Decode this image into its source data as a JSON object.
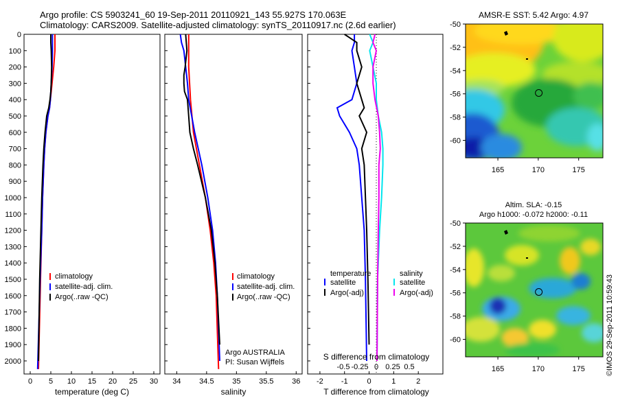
{
  "titles": {
    "line1": "Argo profile: CS 5903241_60 19-Sep-2011 20110921_143 55.927S 170.063E",
    "line2": "Climatology: CARS2009. Satellite-adjusted climatology: synTS_20110917.nc (2.6d earlier)"
  },
  "colors": {
    "climatology": "#ff0000",
    "satellite": "#0000ff",
    "argo": "#000000",
    "s_satellite": "#00e5ee",
    "s_argo": "#ee00ee"
  },
  "chart_data": [
    {
      "type": "line",
      "id": "temperature",
      "xlabel": "temperature (deg C)",
      "ylabel": "",
      "xlim": [
        -1.5,
        31.5
      ],
      "ylim": [
        0,
        2080
      ],
      "y_inverted": true,
      "xticks": [
        "0",
        "5",
        "10",
        "15",
        "20",
        "25",
        "30"
      ],
      "yticks": [
        "0",
        "100",
        "200",
        "300",
        "400",
        "500",
        "600",
        "700",
        "800",
        "900",
        "1000",
        "1100",
        "1200",
        "1300",
        "1400",
        "1500",
        "1600",
        "1700",
        "1800",
        "1900",
        "2000"
      ],
      "legend": [
        "climatology",
        "satellite-adj. clim.",
        "Argo(..raw -QC)"
      ],
      "series": [
        {
          "name": "climatology",
          "color": "#ff0000",
          "depth": [
            0,
            100,
            200,
            300,
            400,
            450,
            500,
            600,
            700,
            800,
            1000,
            1200,
            1500,
            2050
          ],
          "values": [
            6.0,
            6.0,
            5.7,
            5.3,
            4.9,
            4.7,
            4.3,
            3.8,
            3.5,
            3.3,
            3.0,
            2.8,
            2.5,
            2.0
          ]
        },
        {
          "name": "satellite-adj. clim.",
          "color": "#0000ff",
          "depth": [
            0,
            100,
            200,
            300,
            400,
            450,
            500,
            600,
            700,
            800,
            1000,
            1200,
            1500,
            2050
          ],
          "values": [
            5.4,
            5.4,
            5.3,
            5.1,
            4.9,
            4.7,
            4.3,
            3.8,
            3.5,
            3.3,
            3.0,
            2.8,
            2.4,
            1.8
          ]
        },
        {
          "name": "Argo(..raw -QC)",
          "color": "#000000",
          "depth": [
            0,
            50,
            100,
            200,
            300,
            350,
            400,
            450,
            500,
            600,
            700,
            800,
            1000,
            1200,
            1500,
            2000
          ],
          "values": [
            5.0,
            5.0,
            5.1,
            5.2,
            5.1,
            5.0,
            4.8,
            4.5,
            4.0,
            3.6,
            3.3,
            3.1,
            2.8,
            2.6,
            2.3,
            2.0
          ]
        }
      ]
    },
    {
      "type": "line",
      "id": "salinity",
      "xlabel": "salinity",
      "ylabel": "",
      "xlim": [
        33.8,
        36.1
      ],
      "ylim": [
        0,
        2080
      ],
      "y_inverted": true,
      "xticks": [
        "34",
        "34.5",
        "35",
        "35.5",
        "36"
      ],
      "legend": [
        "climatology",
        "satellite-adj. clim.",
        "Argo(..raw -QC)"
      ],
      "annotation": [
        "Argo AUSTRALIA",
        "PI: Susan Wijffels"
      ],
      "series": [
        {
          "name": "climatology",
          "color": "#ff0000",
          "depth": [
            0,
            100,
            200,
            400,
            600,
            800,
            1000,
            1200,
            1400,
            1600,
            2050
          ],
          "values": [
            34.2,
            34.2,
            34.2,
            34.23,
            34.28,
            34.38,
            34.48,
            34.56,
            34.62,
            34.66,
            34.7
          ]
        },
        {
          "name": "satellite-adj. clim.",
          "color": "#0000ff",
          "depth": [
            0,
            50,
            100,
            200,
            300,
            400,
            600,
            800,
            1000,
            1200,
            1400,
            1600,
            2000
          ],
          "values": [
            34.06,
            34.08,
            34.12,
            34.15,
            34.18,
            34.2,
            34.3,
            34.42,
            34.52,
            34.6,
            34.65,
            34.68,
            34.72
          ]
        },
        {
          "name": "Argo(..raw -QC)",
          "color": "#000000",
          "depth": [
            0,
            50,
            100,
            200,
            250,
            300,
            350,
            400,
            500,
            600,
            700,
            800,
            1000,
            1200,
            1400,
            1600,
            1900
          ],
          "values": [
            34.15,
            34.16,
            34.17,
            34.14,
            34.12,
            34.12,
            34.13,
            34.18,
            34.2,
            34.22,
            34.28,
            34.35,
            34.48,
            34.58,
            34.64,
            34.68,
            34.72
          ]
        }
      ]
    },
    {
      "type": "line",
      "id": "differences",
      "xlabel": "T difference from climatology",
      "xlabel_top": "S difference from climatology",
      "xlim": [
        -2.5,
        3.0
      ],
      "s_xlim": [
        -0.75,
        0.75
      ],
      "ylim": [
        0,
        2080
      ],
      "y_inverted": true,
      "xticks": [
        "-2",
        "-1",
        "0",
        "1",
        "2"
      ],
      "s_xticks": [
        "-0.5",
        "-0.25",
        "0",
        "0.25",
        "0.5"
      ],
      "legend_t": {
        "title": "temperature",
        "entries": [
          "satellite",
          "Argo(-adj)"
        ]
      },
      "legend_s": {
        "title": "salinity",
        "entries": [
          "satellite",
          "Argo(-adj)"
        ]
      },
      "series": [
        {
          "name": "temperature satellite",
          "color": "#0000ff",
          "depth": [
            0,
            50,
            100,
            200,
            300,
            400,
            450,
            500,
            600,
            700,
            800,
            1000,
            1200,
            1500,
            2000
          ],
          "values": [
            -0.6,
            -0.6,
            -0.7,
            -0.6,
            -0.5,
            -0.7,
            -1.3,
            -1.2,
            -0.8,
            -0.5,
            -0.4,
            -0.3,
            -0.2,
            -0.15,
            -0.1
          ]
        },
        {
          "name": "temperature Argo(-adj)",
          "color": "#000000",
          "depth": [
            0,
            50,
            100,
            200,
            300,
            400,
            450,
            500,
            600,
            700,
            800,
            1000,
            1200,
            1500,
            1900
          ],
          "values": [
            -1.0,
            -0.5,
            -0.5,
            -0.3,
            -0.5,
            -0.3,
            -0.2,
            -0.4,
            -0.1,
            -0.3,
            -0.2,
            -0.15,
            -0.1,
            -0.05,
            0.0
          ]
        },
        {
          "name": "salinity satellite",
          "color": "#00e5ee",
          "depth": [
            0,
            50,
            100,
            200,
            300,
            400,
            500,
            600,
            700,
            800,
            1000,
            1200,
            1500,
            2000
          ],
          "values": [
            -0.1,
            -0.05,
            -0.1,
            -0.05,
            0.0,
            0.0,
            0.03,
            0.08,
            0.1,
            0.1,
            0.08,
            0.05,
            0.02,
            0.01
          ]
        },
        {
          "name": "salinity Argo(-adj)",
          "color": "#ee00ee",
          "depth": [
            0,
            50,
            100,
            200,
            300,
            400,
            500,
            600,
            700,
            800,
            1000,
            1200,
            1500,
            2000
          ],
          "values": [
            -0.02,
            -0.05,
            0.0,
            -0.05,
            -0.05,
            -0.02,
            0.03,
            0.05,
            0.06,
            0.04,
            0.04,
            0.03,
            0.02,
            0.01
          ]
        }
      ]
    },
    {
      "type": "heatmap",
      "id": "sst_map",
      "title": "AMSR-E SST: 5.42  Argo: 4.97",
      "xlim": [
        161,
        178
      ],
      "ylim": [
        -61.5,
        -50
      ],
      "xticks": [
        "165",
        "170",
        "175"
      ],
      "yticks": [
        "-50",
        "-52",
        "-54",
        "-56",
        "-58",
        "-60"
      ],
      "marker": {
        "lon": 170.063,
        "lat": -55.927
      }
    },
    {
      "type": "heatmap",
      "id": "sla_map",
      "title_line1": "Altim. SLA: -0.15",
      "title_line2": "Argo h1000: -0.072 h2000: -0.11",
      "xlim": [
        161,
        178
      ],
      "ylim": [
        -61.5,
        -50
      ],
      "xticks": [
        "165",
        "170",
        "175"
      ],
      "yticks": [
        "-50",
        "-52",
        "-54",
        "-56",
        "-58",
        "-60"
      ],
      "marker": {
        "lon": 170.063,
        "lat": -55.927
      }
    }
  ],
  "watermark": "©IMOS 29-Sep-2011 10:59:43"
}
